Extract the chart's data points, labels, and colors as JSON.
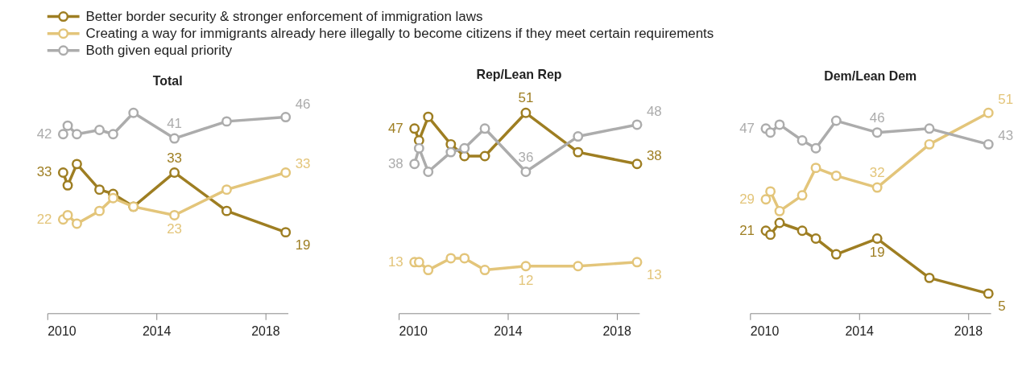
{
  "chart_data": [
    {
      "type": "line",
      "title": "Total",
      "legend": "top",
      "marker": "circle",
      "tick_labels": "x",
      "x": [
        "2010-08",
        "2010-10",
        "2011-02",
        "2011-12",
        "2012-06",
        "2013-03",
        "2014-09",
        "2016-08",
        "2018-10"
      ],
      "xlim": [
        "2010-01",
        "2018-11"
      ],
      "xticks": [
        "2010",
        "2014",
        "2018"
      ],
      "series": [
        {
          "name": "Better border security & stronger enforcement of immigration laws",
          "color": "#9e7e22",
          "values": [
            33,
            30,
            35,
            29,
            28,
            25,
            33,
            24,
            19
          ],
          "value_labels": [
            "33",
            null,
            null,
            null,
            null,
            null,
            "33",
            null,
            "19"
          ]
        },
        {
          "name": "Creating a way for immigrants already here illegally to become citizens if they meet certain requirements",
          "color": "#e3c57a",
          "values": [
            22,
            23,
            21,
            24,
            27,
            25,
            23,
            29,
            33
          ],
          "value_labels": [
            "22",
            null,
            null,
            null,
            null,
            null,
            "23",
            null,
            "33"
          ]
        },
        {
          "name": "Both given equal priority",
          "color": "#acacac",
          "values": [
            42,
            44,
            42,
            43,
            42,
            47,
            41,
            45,
            46
          ],
          "value_labels": [
            "42",
            null,
            null,
            null,
            null,
            null,
            "41",
            null,
            "46"
          ]
        }
      ]
    },
    {
      "type": "line",
      "title": "Rep/Lean Rep",
      "marker": "circle",
      "tick_labels": "x",
      "x": [
        "2010-08",
        "2010-10",
        "2011-02",
        "2011-12",
        "2012-06",
        "2013-03",
        "2014-09",
        "2016-08",
        "2018-10"
      ],
      "xlim": [
        "2010-01",
        "2018-11"
      ],
      "xticks": [
        "2010",
        "2014",
        "2018"
      ],
      "series": [
        {
          "color": "#9e7e22",
          "values": [
            47,
            44,
            50,
            43,
            40,
            40,
            51,
            41,
            38
          ],
          "value_labels": [
            "47",
            null,
            null,
            null,
            null,
            null,
            "51",
            null,
            "38"
          ]
        },
        {
          "color": "#e3c57a",
          "values": [
            13,
            13,
            11,
            14,
            14,
            11,
            12,
            12,
            13
          ],
          "value_labels": [
            "13",
            null,
            null,
            null,
            null,
            null,
            "12",
            null,
            "13"
          ]
        },
        {
          "color": "#acacac",
          "values": [
            38,
            42,
            36,
            41,
            42,
            47,
            36,
            45,
            48
          ],
          "value_labels": [
            "38",
            null,
            null,
            null,
            null,
            null,
            "36",
            null,
            "48"
          ]
        }
      ]
    },
    {
      "type": "line",
      "title": "Dem/Lean Dem",
      "marker": "circle",
      "tick_labels": "x",
      "x": [
        "2010-08",
        "2010-10",
        "2011-02",
        "2011-12",
        "2012-06",
        "2013-03",
        "2014-09",
        "2016-08",
        "2018-10"
      ],
      "xlim": [
        "2010-01",
        "2018-11"
      ],
      "xticks": [
        "2010",
        "2014",
        "2018"
      ],
      "series": [
        {
          "color": "#9e7e22",
          "values": [
            21,
            20,
            23,
            21,
            19,
            15,
            19,
            9,
            5
          ],
          "value_labels": [
            "21",
            null,
            null,
            null,
            null,
            null,
            "19",
            null,
            "5"
          ]
        },
        {
          "color": "#e3c57a",
          "values": [
            29,
            31,
            26,
            30,
            37,
            35,
            32,
            43,
            51
          ],
          "value_labels": [
            "29",
            null,
            null,
            null,
            null,
            null,
            "32",
            null,
            "51"
          ]
        },
        {
          "color": "#acacac",
          "values": [
            47,
            46,
            48,
            44,
            42,
            49,
            46,
            47,
            43
          ],
          "value_labels": [
            "47",
            null,
            null,
            null,
            null,
            null,
            "46",
            null,
            "43"
          ]
        }
      ]
    }
  ]
}
